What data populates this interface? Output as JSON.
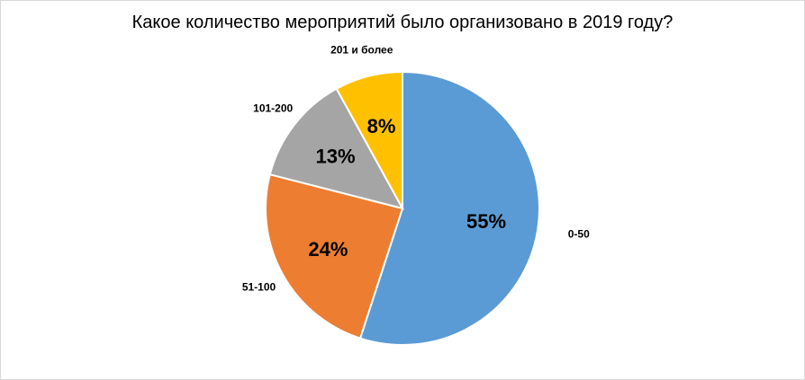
{
  "chart_data": {
    "type": "pie",
    "title": "Какое количество мероприятий было организовано в 2019 году?",
    "categories": [
      "0-50",
      "51-100",
      "101-200",
      "201 и более"
    ],
    "values": [
      55,
      24,
      13,
      8
    ],
    "value_labels": [
      "55%",
      "24%",
      "13%",
      "8%"
    ],
    "colors": [
      "#5b9bd5",
      "#ed7d31",
      "#a5a5a5",
      "#ffc000"
    ],
    "start_angle_deg": 0,
    "direction": "clockwise",
    "legend": "none",
    "data_labels": "inside-percent, outside-category"
  }
}
